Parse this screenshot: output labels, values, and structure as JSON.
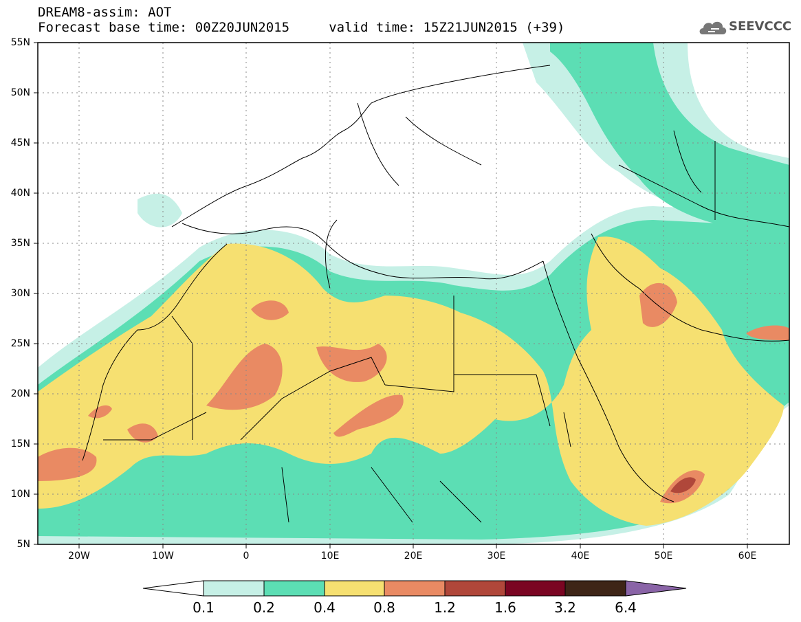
{
  "header": {
    "title_line_1": "DREAM8-assim: AOT",
    "title_line_2": "Forecast base time: 00Z20JUN2015     valid time: 15Z21JUN2015 (+39)",
    "logo_text": "SEEVCCC",
    "logo_icon": "cloud-icon"
  },
  "map": {
    "projection": "lat-lon",
    "lon_range": [
      -25,
      65
    ],
    "lat_range": [
      5,
      55
    ],
    "gridlines": "dotted",
    "lat_labels": [
      "55N",
      "50N",
      "45N",
      "40N",
      "35N",
      "30N",
      "25N",
      "20N",
      "15N",
      "10N",
      "5N"
    ],
    "lon_labels": [
      "20W",
      "10W",
      "0",
      "10E",
      "20E",
      "30E",
      "40E",
      "50E",
      "60E"
    ],
    "field": "Aerosol Optical Thickness (AOT)"
  },
  "colorbar": {
    "thresholds": [
      "0.1",
      "0.2",
      "0.4",
      "0.8",
      "1.2",
      "1.6",
      "3.2",
      "6.4"
    ],
    "colors": [
      "#ffffff",
      "#c6f0e6",
      "#5cdeb4",
      "#f6e071",
      "#e98a63",
      "#b0473a",
      "#7a0522",
      "#3e2517",
      "#8a64a7"
    ]
  }
}
